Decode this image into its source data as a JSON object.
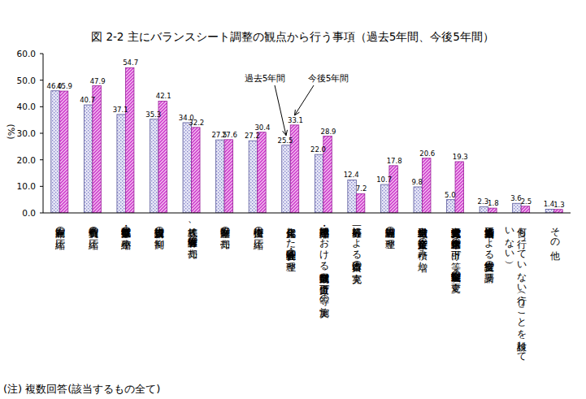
{
  "chart_data": {
    "type": "bar",
    "title": "図 2-2  主にバランスシート調整の観点から行う事項（過去5年間、今後5年間）",
    "y_label": "(%)",
    "note": "(注) 複数回答(該当するもの全て)",
    "categories": [
      "過剰在庫の圧縮",
      "有利子負債の圧縮",
      "不採算・低収益事業の縮小・整",
      "新規設備投資の抑制",
      "株式等、保有有価証券の売却",
      "保有不動産の売却",
      "売掛債権の圧縮",
      "資産劣化した子会社・関連会社の整理",
      "縮小・整理部門等における従業員数削減や賃金引下げ等の実施",
      "一般公募等による自己資本の充実",
      "過剰設備等の整理",
      "退職給与引当金や企業年金資産の積み増し",
      "退職金給付方式変更や企業年金給付水準の引下げ等、退職金・企業年金制度の変更",
      "第三者割当増資等による経営支援の要請",
      "何も行っていない（行うことを検討していない）",
      "その他"
    ],
    "series": [
      {
        "name": "過去5年間",
        "color": "#8080c8",
        "values": [
          46.0,
          40.7,
          37.1,
          35.3,
          34.0,
          27.5,
          27.2,
          25.5,
          22.0,
          12.4,
          10.7,
          9.8,
          5.0,
          2.3,
          3.6,
          1.4
        ],
        "value_labels": [
          "46.0",
          "40.7",
          "37.1",
          "35.3",
          "34.0",
          "27.5",
          "27.2",
          "25.5",
          "22.0",
          "12.4",
          "10.7",
          "9.8",
          "5.0",
          "2.3",
          "3.6",
          "1.4"
        ]
      },
      {
        "name": "今後5年間",
        "color": "#cc33cc",
        "values": [
          45.9,
          47.9,
          54.7,
          42.1,
          32.2,
          27.6,
          30.4,
          33.1,
          28.9,
          7.2,
          17.8,
          20.6,
          19.3,
          1.8,
          2.5,
          1.3
        ],
        "value_labels": [
          "45.9",
          "47.9",
          "54.7",
          "42.1",
          "32.2",
          "27.6",
          "30.4",
          "33.1",
          "28.9",
          "7.2",
          "17.8",
          "20.6",
          "19.3",
          "1.8",
          "2.5",
          "1.3"
        ]
      }
    ],
    "ylim": [
      0,
      60
    ],
    "yticks": [
      {
        "value": 0,
        "label": "0.0"
      },
      {
        "value": 10,
        "label": "10.0"
      },
      {
        "value": 20,
        "label": "20.0"
      },
      {
        "value": 30,
        "label": "30.0"
      },
      {
        "value": 40,
        "label": "40.0"
      },
      {
        "value": 50,
        "label": "50.0"
      },
      {
        "value": 60,
        "label": "60.0"
      }
    ],
    "data_labels": true,
    "grid": false
  }
}
